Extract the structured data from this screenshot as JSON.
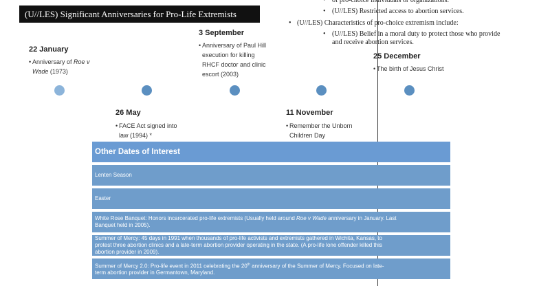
{
  "header": {
    "title": "(U//LES) Significant Anniversaries for Pro-Life Extremists"
  },
  "background_text": {
    "items": [
      {
        "level": 2,
        "lines": [
          "of pro-choice individuals or organizations."
        ]
      },
      {
        "level": 2,
        "lines": [
          "(U//LES) Restricted access to abortion services."
        ]
      },
      {
        "level": 1,
        "lines": [
          "(U//LES) Characteristics of pro-choice extremism include:"
        ]
      },
      {
        "level": 2,
        "lines": [
          "(U//LES) Belief in a moral duty to protect those who provide",
          "and receive abortion services."
        ]
      }
    ]
  },
  "timeline": {
    "events": [
      {
        "date": "22 January",
        "side": "above",
        "lines": [
          [
            "Anniversary of ",
            {
              "text": "Roe v",
              "italic": true
            }
          ],
          [
            {
              "text": "Wade",
              "italic": true
            },
            " (1973)"
          ]
        ]
      },
      {
        "date": "26 May",
        "side": "below",
        "lines": [
          [
            "FACE Act signed into"
          ],
          [
            "law (1994) *"
          ]
        ]
      },
      {
        "date": "3 September",
        "side": "above",
        "lines": [
          [
            "Anniversary of Paul Hill"
          ],
          [
            "execution for killing"
          ],
          [
            "RHCF doctor and clinic"
          ],
          [
            "escort (2003)"
          ]
        ]
      },
      {
        "date": "11 November",
        "side": "below",
        "lines": [
          [
            "Remember the Unborn"
          ],
          [
            "Children Day"
          ]
        ]
      },
      {
        "date": "25 December",
        "side": "above",
        "lines": [
          [
            "The birth of Jesus Christ"
          ]
        ]
      }
    ]
  },
  "other_dates": {
    "title": "Other Dates of Interest",
    "rows": [
      {
        "lines": [
          [
            "Lenten Season"
          ]
        ]
      },
      {
        "lines": [
          [
            "Easter"
          ]
        ]
      },
      {
        "lines": [
          [
            "White Rose Banquet: Honors incarcerated pro-life extremists (Usually held around ",
            {
              "text": "Roe v Wade",
              "italic": true
            },
            " anniversary in January. Last"
          ],
          [
            "Banquet held in 2005)."
          ]
        ]
      },
      {
        "lines": [
          [
            "Summer of Mercy: 45 days in 1991 when thousands of pro-life activists and extremists gathered in Wichita, Kansas, to"
          ],
          [
            "protest three abortion clinics and a late-term abortion provider operating in the state. (A pro-life lone offender killed this"
          ],
          [
            "abortion provider in 2009)."
          ]
        ]
      },
      {
        "lines": [
          [
            "Summer of Mercy 2.0: Pro-life event in 2011 celebrating the 20",
            {
              "text": "th",
              "sup": true
            },
            " anniversary of the Summer of Mercy. Focused on late-"
          ],
          [
            "term abortion provider in Germantown, Maryland."
          ]
        ]
      }
    ]
  }
}
